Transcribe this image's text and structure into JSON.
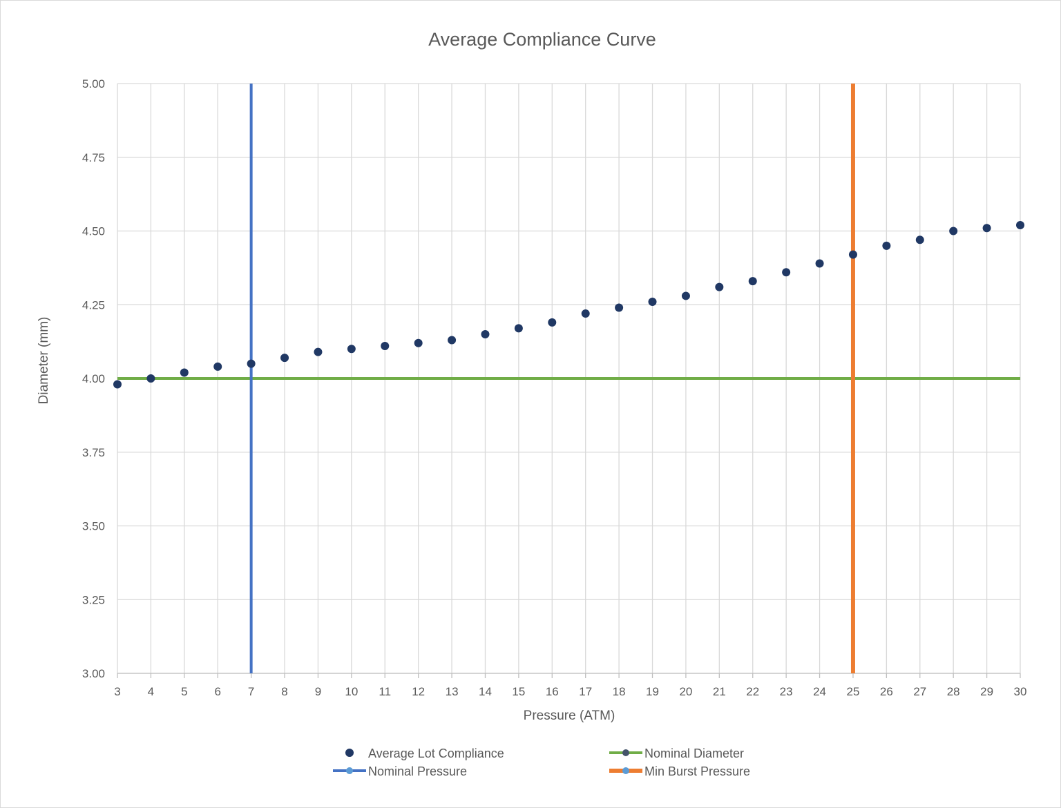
{
  "chart_data": {
    "type": "scatter",
    "title": "Average Compliance Curve",
    "xlabel": "Pressure (ATM)",
    "ylabel": "Diameter (mm)",
    "xlim": [
      3,
      30
    ],
    "ylim": [
      3.0,
      5.0
    ],
    "x_ticks": [
      3,
      4,
      5,
      6,
      7,
      8,
      9,
      10,
      11,
      12,
      13,
      14,
      15,
      16,
      17,
      18,
      19,
      20,
      21,
      22,
      23,
      24,
      25,
      26,
      27,
      28,
      29,
      30
    ],
    "y_ticks": [
      "3.00",
      "3.25",
      "3.50",
      "3.75",
      "4.00",
      "4.25",
      "4.50",
      "4.75",
      "5.00"
    ],
    "grid": true,
    "legend_position": "bottom",
    "series": [
      {
        "name": "Average Lot Compliance",
        "kind": "points",
        "color": "#203864",
        "x": [
          3,
          4,
          5,
          6,
          7,
          8,
          9,
          10,
          11,
          12,
          13,
          14,
          15,
          16,
          17,
          18,
          19,
          20,
          21,
          22,
          23,
          24,
          25,
          26,
          27,
          28,
          29,
          30
        ],
        "y": [
          3.98,
          4.0,
          4.02,
          4.04,
          4.05,
          4.07,
          4.09,
          4.1,
          4.11,
          4.12,
          4.13,
          4.15,
          4.17,
          4.19,
          4.22,
          4.24,
          4.26,
          4.28,
          4.31,
          4.33,
          4.36,
          4.39,
          4.42,
          4.45,
          4.47,
          4.5,
          4.51,
          4.52
        ]
      },
      {
        "name": "Nominal Diameter",
        "kind": "hline",
        "color": "#70ad47",
        "marker_color": "#44546a",
        "y": 4.0
      },
      {
        "name": "Nominal Pressure",
        "kind": "vline",
        "color": "#4472c4",
        "marker_color": "#5b9bd5",
        "x": 7
      },
      {
        "name": "Min Burst Pressure",
        "kind": "vline",
        "color": "#ed7d31",
        "marker_color": "#5b9bd5",
        "x": 25
      }
    ]
  }
}
